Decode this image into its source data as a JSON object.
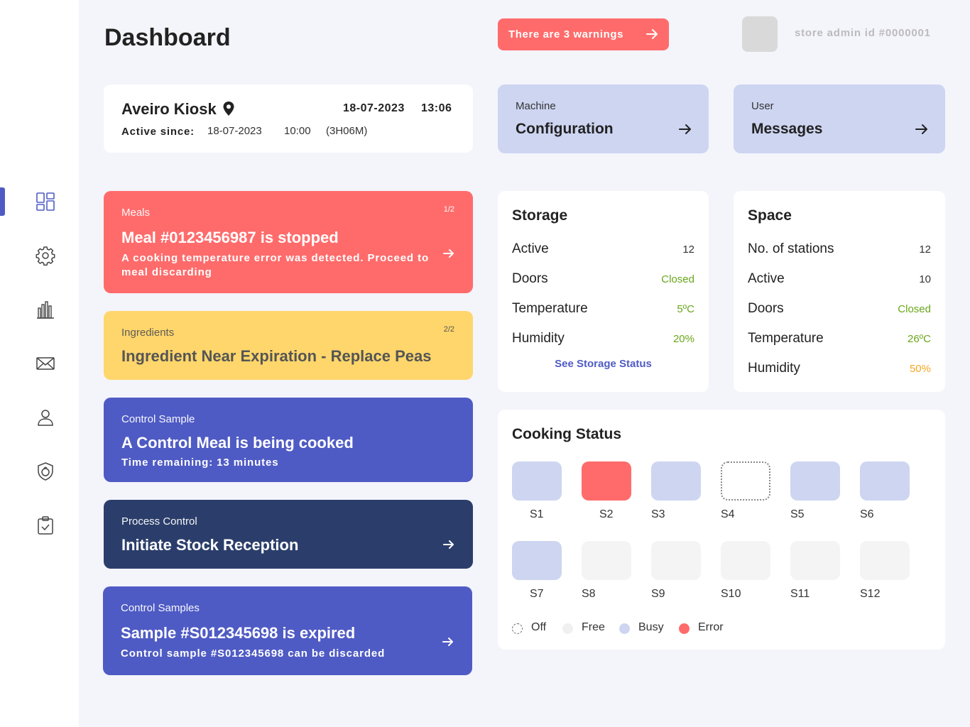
{
  "header": {
    "title": "Dashboard",
    "warning_label": "There are 3 warnings",
    "admin_id": "store admin id #0000001"
  },
  "kiosk": {
    "name": "Aveiro Kiosk",
    "date": "18-07-2023",
    "time": "13:06",
    "active_label": "Active since:",
    "active_date": "18-07-2023",
    "active_time": "10:00",
    "active_duration": "(3H06M)"
  },
  "nav_cards": {
    "config_small": "Machine",
    "config_big": "Configuration",
    "messages_small": "User",
    "messages_big": "Messages"
  },
  "alerts": {
    "meals": {
      "category": "Meals",
      "pager": "1/2",
      "headline": "Meal #0123456987 is stopped",
      "detail": "A cooking temperature error was detected. Proceed to meal discarding"
    },
    "ingredients": {
      "category": "Ingredients",
      "pager": "2/2",
      "headline": "Ingredient Near Expiration - Replace Peas"
    },
    "control_sample": {
      "category": "Control Sample",
      "headline": "A Control Meal is being cooked",
      "detail": "Time remaining: 13 minutes"
    },
    "process_control": {
      "category": "Process Control",
      "headline": "Initiate Stock Reception"
    },
    "control_samples": {
      "category": "Control Samples",
      "headline": "Sample #S012345698 is expired",
      "detail": "Control sample #S012345698 can be discarded"
    }
  },
  "storage": {
    "title": "Storage",
    "rows": [
      {
        "label": "Active",
        "value": "12"
      },
      {
        "label": "Doors",
        "value": "Closed"
      },
      {
        "label": "Temperature",
        "value": "5ºC"
      },
      {
        "label": "Humidity",
        "value": "20%"
      }
    ],
    "link": "See Storage Status"
  },
  "space": {
    "title": "Space",
    "rows": [
      {
        "label": "No. of stations",
        "value": "12"
      },
      {
        "label": "Active",
        "value": "10"
      },
      {
        "label": "Doors",
        "value": "Closed"
      },
      {
        "label": "Temperature",
        "value": "26ºC"
      },
      {
        "label": "Humidity",
        "value": "50%"
      }
    ]
  },
  "cooking": {
    "title": "Cooking Status",
    "stations": [
      {
        "label": "S1",
        "status": "busy"
      },
      {
        "label": "S2",
        "status": "error"
      },
      {
        "label": "S3",
        "status": "busy"
      },
      {
        "label": "S4",
        "status": "off"
      },
      {
        "label": "S5",
        "status": "busy"
      },
      {
        "label": "S6",
        "status": "busy"
      },
      {
        "label": "S7",
        "status": "busy"
      },
      {
        "label": "S8",
        "status": "free"
      },
      {
        "label": "S9",
        "status": "free"
      },
      {
        "label": "S10",
        "status": "free"
      },
      {
        "label": "S11",
        "status": "free"
      },
      {
        "label": "S12",
        "status": "free"
      }
    ],
    "legend": {
      "off": "Off",
      "free": "Free",
      "busy": "Busy",
      "error": "Error"
    }
  },
  "sidebar": {
    "items": [
      "dashboard-icon",
      "gear-icon",
      "chart-icon",
      "mail-icon",
      "user-icon",
      "shield-icon",
      "clipboard-icon"
    ]
  },
  "colors": {
    "accent": "#4f5bc4",
    "error": "#ff6b6b",
    "warning": "#ffd66b",
    "busy": "#cdd5f1",
    "navy": "#2b3e6b",
    "ok_green": "#6aa61d",
    "orange": "#f5a623"
  }
}
